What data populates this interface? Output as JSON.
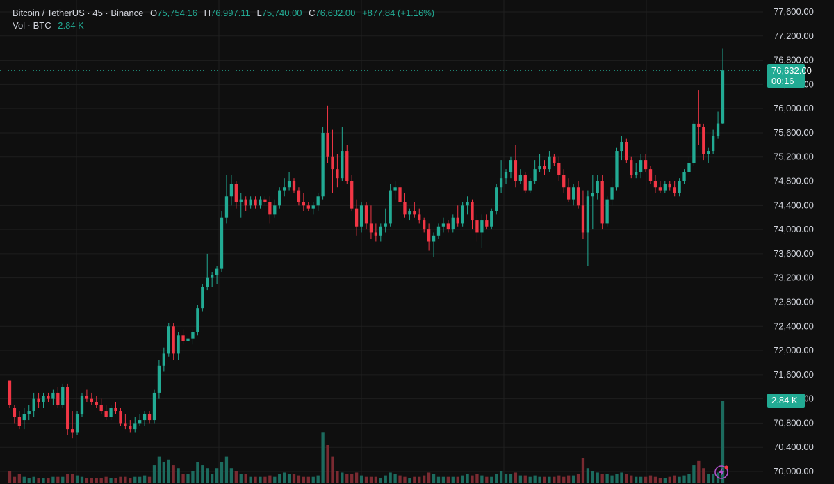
{
  "legend": {
    "symbol": "Bitcoin / TetherUS · 45 · Binance",
    "o_label": "O",
    "o_value": "75,754.16",
    "h_label": "H",
    "h_value": "76,997.11",
    "l_label": "L",
    "l_value": "75,740.00",
    "c_label": "C",
    "c_value": "76,632.00",
    "change": "+877.84 (+1.16%)",
    "vol_label": "Vol · BTC",
    "vol_value": "2.84 K"
  },
  "price_tag": {
    "price": "76,632.00",
    "countdown": "00:16"
  },
  "volume_tag": {
    "value": "2.84 K"
  },
  "colors": {
    "up": "#22ab94",
    "down": "#f23645",
    "up_vol": "#1c6b5e",
    "down_vol": "#7a2a31",
    "grid": "#1f1f1f",
    "text": "#d1d4dc",
    "background": "#0f0f0f"
  },
  "icons": {
    "bottom_right": "lightning-icon"
  },
  "chart_data": {
    "type": "candlestick",
    "y_axis_labels": [
      "77,600.00",
      "77,200.00",
      "76,800.00",
      "76,400.00",
      "76,000.00",
      "75,600.00",
      "75,200.00",
      "74,800.00",
      "74,400.00",
      "74,000.00",
      "73,600.00",
      "73,200.00",
      "72,800.00",
      "72,400.00",
      "72,000.00",
      "71,600.00",
      "71,200.00",
      "70,800.00",
      "70,400.00",
      "70,000.00"
    ],
    "ylim": [
      69950,
      77650
    ],
    "last_price": 76632,
    "volume_unit": "K BTC",
    "candles": [
      {
        "o": 71500,
        "h": 71500,
        "l": 71050,
        "c": 71100,
        "v": 0.4
      },
      {
        "o": 71050,
        "h": 71100,
        "l": 70800,
        "c": 70900,
        "v": 0.2
      },
      {
        "o": 70900,
        "h": 71000,
        "l": 70700,
        "c": 70750,
        "v": 0.3
      },
      {
        "o": 70850,
        "h": 71050,
        "l": 70700,
        "c": 70950,
        "v": 0.2
      },
      {
        "o": 70950,
        "h": 71100,
        "l": 70850,
        "c": 71000,
        "v": 0.15
      },
      {
        "o": 71000,
        "h": 71300,
        "l": 70900,
        "c": 71200,
        "v": 0.2
      },
      {
        "o": 71200,
        "h": 71300,
        "l": 71050,
        "c": 71150,
        "v": 0.15
      },
      {
        "o": 71150,
        "h": 71300,
        "l": 71050,
        "c": 71250,
        "v": 0.15
      },
      {
        "o": 71250,
        "h": 71300,
        "l": 71150,
        "c": 71200,
        "v": 0.15
      },
      {
        "o": 71200,
        "h": 71350,
        "l": 71100,
        "c": 71300,
        "v": 0.2
      },
      {
        "o": 71300,
        "h": 71400,
        "l": 71050,
        "c": 71100,
        "v": 0.2
      },
      {
        "o": 71100,
        "h": 71450,
        "l": 71050,
        "c": 71400,
        "v": 0.2
      },
      {
        "o": 71400,
        "h": 71450,
        "l": 70600,
        "c": 70700,
        "v": 0.3
      },
      {
        "o": 70700,
        "h": 71000,
        "l": 70550,
        "c": 70650,
        "v": 0.3
      },
      {
        "o": 70650,
        "h": 71000,
        "l": 70600,
        "c": 70950,
        "v": 0.25
      },
      {
        "o": 70950,
        "h": 71300,
        "l": 70900,
        "c": 71250,
        "v": 0.2
      },
      {
        "o": 71250,
        "h": 71350,
        "l": 71150,
        "c": 71200,
        "v": 0.15
      },
      {
        "o": 71200,
        "h": 71300,
        "l": 71100,
        "c": 71150,
        "v": 0.15
      },
      {
        "o": 71150,
        "h": 71250,
        "l": 71050,
        "c": 71100,
        "v": 0.15
      },
      {
        "o": 71100,
        "h": 71200,
        "l": 70950,
        "c": 71000,
        "v": 0.15
      },
      {
        "o": 71000,
        "h": 71100,
        "l": 70850,
        "c": 70900,
        "v": 0.2
      },
      {
        "o": 70900,
        "h": 71100,
        "l": 70850,
        "c": 71050,
        "v": 0.15
      },
      {
        "o": 71050,
        "h": 71150,
        "l": 70950,
        "c": 71000,
        "v": 0.15
      },
      {
        "o": 71000,
        "h": 71050,
        "l": 70750,
        "c": 70800,
        "v": 0.2
      },
      {
        "o": 70800,
        "h": 70950,
        "l": 70700,
        "c": 70750,
        "v": 0.2
      },
      {
        "o": 70750,
        "h": 70850,
        "l": 70650,
        "c": 70700,
        "v": 0.15
      },
      {
        "o": 70700,
        "h": 70900,
        "l": 70650,
        "c": 70800,
        "v": 0.2
      },
      {
        "o": 70800,
        "h": 70950,
        "l": 70750,
        "c": 70850,
        "v": 0.2
      },
      {
        "o": 70850,
        "h": 71000,
        "l": 70750,
        "c": 70950,
        "v": 0.25
      },
      {
        "o": 70950,
        "h": 71000,
        "l": 70800,
        "c": 70850,
        "v": 0.2
      },
      {
        "o": 70850,
        "h": 71350,
        "l": 70800,
        "c": 71300,
        "v": 0.6
      },
      {
        "o": 71300,
        "h": 71850,
        "l": 71200,
        "c": 71750,
        "v": 0.9
      },
      {
        "o": 71750,
        "h": 72050,
        "l": 71650,
        "c": 71950,
        "v": 0.7
      },
      {
        "o": 71950,
        "h": 72450,
        "l": 71900,
        "c": 72400,
        "v": 0.8
      },
      {
        "o": 72400,
        "h": 72450,
        "l": 71850,
        "c": 71950,
        "v": 0.6
      },
      {
        "o": 71950,
        "h": 72300,
        "l": 71850,
        "c": 72250,
        "v": 0.5
      },
      {
        "o": 72250,
        "h": 72350,
        "l": 72100,
        "c": 72150,
        "v": 0.3
      },
      {
        "o": 72150,
        "h": 72300,
        "l": 72050,
        "c": 72200,
        "v": 0.3
      },
      {
        "o": 72200,
        "h": 72350,
        "l": 72100,
        "c": 72300,
        "v": 0.4
      },
      {
        "o": 72300,
        "h": 72750,
        "l": 72250,
        "c": 72700,
        "v": 0.7
      },
      {
        "o": 72700,
        "h": 73100,
        "l": 72650,
        "c": 73050,
        "v": 0.6
      },
      {
        "o": 73050,
        "h": 73600,
        "l": 73000,
        "c": 73200,
        "v": 0.5
      },
      {
        "o": 73200,
        "h": 73300,
        "l": 73050,
        "c": 73250,
        "v": 0.3
      },
      {
        "o": 73250,
        "h": 73400,
        "l": 73100,
        "c": 73350,
        "v": 0.5
      },
      {
        "o": 73350,
        "h": 74300,
        "l": 73300,
        "c": 74200,
        "v": 0.7
      },
      {
        "o": 74200,
        "h": 74900,
        "l": 74100,
        "c": 74550,
        "v": 0.9
      },
      {
        "o": 74550,
        "h": 74900,
        "l": 74400,
        "c": 74750,
        "v": 0.5
      },
      {
        "o": 74750,
        "h": 74800,
        "l": 74350,
        "c": 74450,
        "v": 0.4
      },
      {
        "o": 74450,
        "h": 74600,
        "l": 74200,
        "c": 74500,
        "v": 0.3
      },
      {
        "o": 74500,
        "h": 74550,
        "l": 74300,
        "c": 74400,
        "v": 0.3
      },
      {
        "o": 74400,
        "h": 74550,
        "l": 74350,
        "c": 74500,
        "v": 0.2
      },
      {
        "o": 74500,
        "h": 74550,
        "l": 74350,
        "c": 74400,
        "v": 0.2
      },
      {
        "o": 74400,
        "h": 74550,
        "l": 74350,
        "c": 74500,
        "v": 0.2
      },
      {
        "o": 74500,
        "h": 74550,
        "l": 74400,
        "c": 74450,
        "v": 0.2
      },
      {
        "o": 74450,
        "h": 74550,
        "l": 74100,
        "c": 74250,
        "v": 0.25
      },
      {
        "o": 74250,
        "h": 74500,
        "l": 74200,
        "c": 74400,
        "v": 0.2
      },
      {
        "o": 74400,
        "h": 74700,
        "l": 74350,
        "c": 74650,
        "v": 0.3
      },
      {
        "o": 74650,
        "h": 74850,
        "l": 74550,
        "c": 74700,
        "v": 0.35
      },
      {
        "o": 74700,
        "h": 74950,
        "l": 74650,
        "c": 74800,
        "v": 0.3
      },
      {
        "o": 74800,
        "h": 74850,
        "l": 74600,
        "c": 74650,
        "v": 0.3
      },
      {
        "o": 74650,
        "h": 74700,
        "l": 74400,
        "c": 74450,
        "v": 0.25
      },
      {
        "o": 74450,
        "h": 74600,
        "l": 74300,
        "c": 74400,
        "v": 0.2
      },
      {
        "o": 74400,
        "h": 74450,
        "l": 74300,
        "c": 74350,
        "v": 0.2
      },
      {
        "o": 74350,
        "h": 74450,
        "l": 74250,
        "c": 74400,
        "v": 0.2
      },
      {
        "o": 74400,
        "h": 74600,
        "l": 74300,
        "c": 74550,
        "v": 0.25
      },
      {
        "o": 74550,
        "h": 75700,
        "l": 74500,
        "c": 75600,
        "v": 1.75
      },
      {
        "o": 75600,
        "h": 76050,
        "l": 75100,
        "c": 75200,
        "v": 1.3
      },
      {
        "o": 75200,
        "h": 75650,
        "l": 74600,
        "c": 75000,
        "v": 0.9
      },
      {
        "o": 75000,
        "h": 75250,
        "l": 74700,
        "c": 74850,
        "v": 0.4
      },
      {
        "o": 74850,
        "h": 75700,
        "l": 74800,
        "c": 75300,
        "v": 0.35
      },
      {
        "o": 75300,
        "h": 75400,
        "l": 74750,
        "c": 74800,
        "v": 0.3
      },
      {
        "o": 74800,
        "h": 74900,
        "l": 74300,
        "c": 74350,
        "v": 0.3
      },
      {
        "o": 74350,
        "h": 74500,
        "l": 73900,
        "c": 74050,
        "v": 0.35
      },
      {
        "o": 74050,
        "h": 74450,
        "l": 73950,
        "c": 74400,
        "v": 0.25
      },
      {
        "o": 74400,
        "h": 74450,
        "l": 74000,
        "c": 74100,
        "v": 0.2
      },
      {
        "o": 74100,
        "h": 74400,
        "l": 73850,
        "c": 73950,
        "v": 0.2
      },
      {
        "o": 73950,
        "h": 74100,
        "l": 73800,
        "c": 73900,
        "v": 0.2
      },
      {
        "o": 73900,
        "h": 74100,
        "l": 73800,
        "c": 74050,
        "v": 0.15
      },
      {
        "o": 74050,
        "h": 74350,
        "l": 73950,
        "c": 74100,
        "v": 0.25
      },
      {
        "o": 74100,
        "h": 74750,
        "l": 74050,
        "c": 74650,
        "v": 0.35
      },
      {
        "o": 74650,
        "h": 74800,
        "l": 74500,
        "c": 74700,
        "v": 0.3
      },
      {
        "o": 74700,
        "h": 74750,
        "l": 74300,
        "c": 74450,
        "v": 0.25
      },
      {
        "o": 74450,
        "h": 74600,
        "l": 74200,
        "c": 74250,
        "v": 0.2
      },
      {
        "o": 74250,
        "h": 74350,
        "l": 74150,
        "c": 74300,
        "v": 0.15
      },
      {
        "o": 74300,
        "h": 74450,
        "l": 74200,
        "c": 74250,
        "v": 0.2
      },
      {
        "o": 74250,
        "h": 74350,
        "l": 74100,
        "c": 74150,
        "v": 0.2
      },
      {
        "o": 74150,
        "h": 74200,
        "l": 73950,
        "c": 74000,
        "v": 0.25
      },
      {
        "o": 74000,
        "h": 74100,
        "l": 73650,
        "c": 73800,
        "v": 0.35
      },
      {
        "o": 73800,
        "h": 73950,
        "l": 73550,
        "c": 73900,
        "v": 0.3
      },
      {
        "o": 73900,
        "h": 74100,
        "l": 73850,
        "c": 74050,
        "v": 0.2
      },
      {
        "o": 74050,
        "h": 74200,
        "l": 73950,
        "c": 74100,
        "v": 0.2
      },
      {
        "o": 74100,
        "h": 74150,
        "l": 73950,
        "c": 74000,
        "v": 0.2
      },
      {
        "o": 74000,
        "h": 74250,
        "l": 73950,
        "c": 74200,
        "v": 0.2
      },
      {
        "o": 74200,
        "h": 74400,
        "l": 74050,
        "c": 74100,
        "v": 0.2
      },
      {
        "o": 74100,
        "h": 74450,
        "l": 74050,
        "c": 74400,
        "v": 0.25
      },
      {
        "o": 74400,
        "h": 74550,
        "l": 74250,
        "c": 74450,
        "v": 0.3
      },
      {
        "o": 74450,
        "h": 74500,
        "l": 74000,
        "c": 74150,
        "v": 0.25
      },
      {
        "o": 74150,
        "h": 74250,
        "l": 73800,
        "c": 73950,
        "v": 0.3
      },
      {
        "o": 73950,
        "h": 74250,
        "l": 73700,
        "c": 74150,
        "v": 0.25
      },
      {
        "o": 74150,
        "h": 74250,
        "l": 74000,
        "c": 74050,
        "v": 0.2
      },
      {
        "o": 74050,
        "h": 74350,
        "l": 74000,
        "c": 74300,
        "v": 0.2
      },
      {
        "o": 74300,
        "h": 74750,
        "l": 74250,
        "c": 74700,
        "v": 0.3
      },
      {
        "o": 74700,
        "h": 75150,
        "l": 74600,
        "c": 74850,
        "v": 0.4
      },
      {
        "o": 74850,
        "h": 75000,
        "l": 74750,
        "c": 74950,
        "v": 0.3
      },
      {
        "o": 74950,
        "h": 75200,
        "l": 74850,
        "c": 75150,
        "v": 0.3
      },
      {
        "o": 75150,
        "h": 75400,
        "l": 74700,
        "c": 74800,
        "v": 0.35
      },
      {
        "o": 74800,
        "h": 75000,
        "l": 74750,
        "c": 74900,
        "v": 0.25
      },
      {
        "o": 74900,
        "h": 74950,
        "l": 74600,
        "c": 74650,
        "v": 0.25
      },
      {
        "o": 74650,
        "h": 74850,
        "l": 74600,
        "c": 74800,
        "v": 0.2
      },
      {
        "o": 74800,
        "h": 75150,
        "l": 74750,
        "c": 75000,
        "v": 0.25
      },
      {
        "o": 75000,
        "h": 75250,
        "l": 74950,
        "c": 75050,
        "v": 0.2
      },
      {
        "o": 75050,
        "h": 75150,
        "l": 74900,
        "c": 75000,
        "v": 0.2
      },
      {
        "o": 75000,
        "h": 75300,
        "l": 74950,
        "c": 75200,
        "v": 0.2
      },
      {
        "o": 75200,
        "h": 75250,
        "l": 75050,
        "c": 75100,
        "v": 0.2
      },
      {
        "o": 75100,
        "h": 75200,
        "l": 74800,
        "c": 74900,
        "v": 0.25
      },
      {
        "o": 74900,
        "h": 75000,
        "l": 74600,
        "c": 74700,
        "v": 0.2
      },
      {
        "o": 74700,
        "h": 74850,
        "l": 74450,
        "c": 74500,
        "v": 0.25
      },
      {
        "o": 74500,
        "h": 74750,
        "l": 74400,
        "c": 74700,
        "v": 0.25
      },
      {
        "o": 74700,
        "h": 74800,
        "l": 74350,
        "c": 74400,
        "v": 0.3
      },
      {
        "o": 74400,
        "h": 74650,
        "l": 73850,
        "c": 73950,
        "v": 0.85
      },
      {
        "o": 73950,
        "h": 74650,
        "l": 73400,
        "c": 74550,
        "v": 0.5
      },
      {
        "o": 74550,
        "h": 74900,
        "l": 74000,
        "c": 74600,
        "v": 0.4
      },
      {
        "o": 74600,
        "h": 74900,
        "l": 74500,
        "c": 74800,
        "v": 0.35
      },
      {
        "o": 74800,
        "h": 74900,
        "l": 74000,
        "c": 74100,
        "v": 0.3
      },
      {
        "o": 74100,
        "h": 74550,
        "l": 74050,
        "c": 74500,
        "v": 0.3
      },
      {
        "o": 74500,
        "h": 74850,
        "l": 74400,
        "c": 74700,
        "v": 0.25
      },
      {
        "o": 74700,
        "h": 75350,
        "l": 74650,
        "c": 75300,
        "v": 0.3
      },
      {
        "o": 75300,
        "h": 75550,
        "l": 75150,
        "c": 75450,
        "v": 0.35
      },
      {
        "o": 75450,
        "h": 75500,
        "l": 75100,
        "c": 75150,
        "v": 0.3
      },
      {
        "o": 75150,
        "h": 75200,
        "l": 74850,
        "c": 74900,
        "v": 0.25
      },
      {
        "o": 74900,
        "h": 75100,
        "l": 74850,
        "c": 74950,
        "v": 0.2
      },
      {
        "o": 74950,
        "h": 75250,
        "l": 74850,
        "c": 75150,
        "v": 0.2
      },
      {
        "o": 75150,
        "h": 75250,
        "l": 74950,
        "c": 75000,
        "v": 0.2
      },
      {
        "o": 75000,
        "h": 75050,
        "l": 74750,
        "c": 74800,
        "v": 0.25
      },
      {
        "o": 74800,
        "h": 74900,
        "l": 74600,
        "c": 74700,
        "v": 0.2
      },
      {
        "o": 74700,
        "h": 74800,
        "l": 74600,
        "c": 74650,
        "v": 0.15
      },
      {
        "o": 74650,
        "h": 74800,
        "l": 74600,
        "c": 74750,
        "v": 0.15
      },
      {
        "o": 74750,
        "h": 74800,
        "l": 74650,
        "c": 74700,
        "v": 0.2
      },
      {
        "o": 74700,
        "h": 74800,
        "l": 74550,
        "c": 74600,
        "v": 0.25
      },
      {
        "o": 74600,
        "h": 74850,
        "l": 74550,
        "c": 74800,
        "v": 0.2
      },
      {
        "o": 74800,
        "h": 75000,
        "l": 74750,
        "c": 74950,
        "v": 0.25
      },
      {
        "o": 74950,
        "h": 75200,
        "l": 74900,
        "c": 75100,
        "v": 0.3
      },
      {
        "o": 75100,
        "h": 75800,
        "l": 75050,
        "c": 75750,
        "v": 0.6
      },
      {
        "o": 75750,
        "h": 76300,
        "l": 75400,
        "c": 75700,
        "v": 0.75
      },
      {
        "o": 75700,
        "h": 75750,
        "l": 75150,
        "c": 75250,
        "v": 0.5
      },
      {
        "o": 75250,
        "h": 75350,
        "l": 75100,
        "c": 75300,
        "v": 0.3
      },
      {
        "o": 75300,
        "h": 75650,
        "l": 75250,
        "c": 75550,
        "v": 0.3
      },
      {
        "o": 75550,
        "h": 75950,
        "l": 75500,
        "c": 75754,
        "v": 0.35
      },
      {
        "o": 75754,
        "h": 76997,
        "l": 75740,
        "c": 76632,
        "v": 2.84
      }
    ]
  }
}
